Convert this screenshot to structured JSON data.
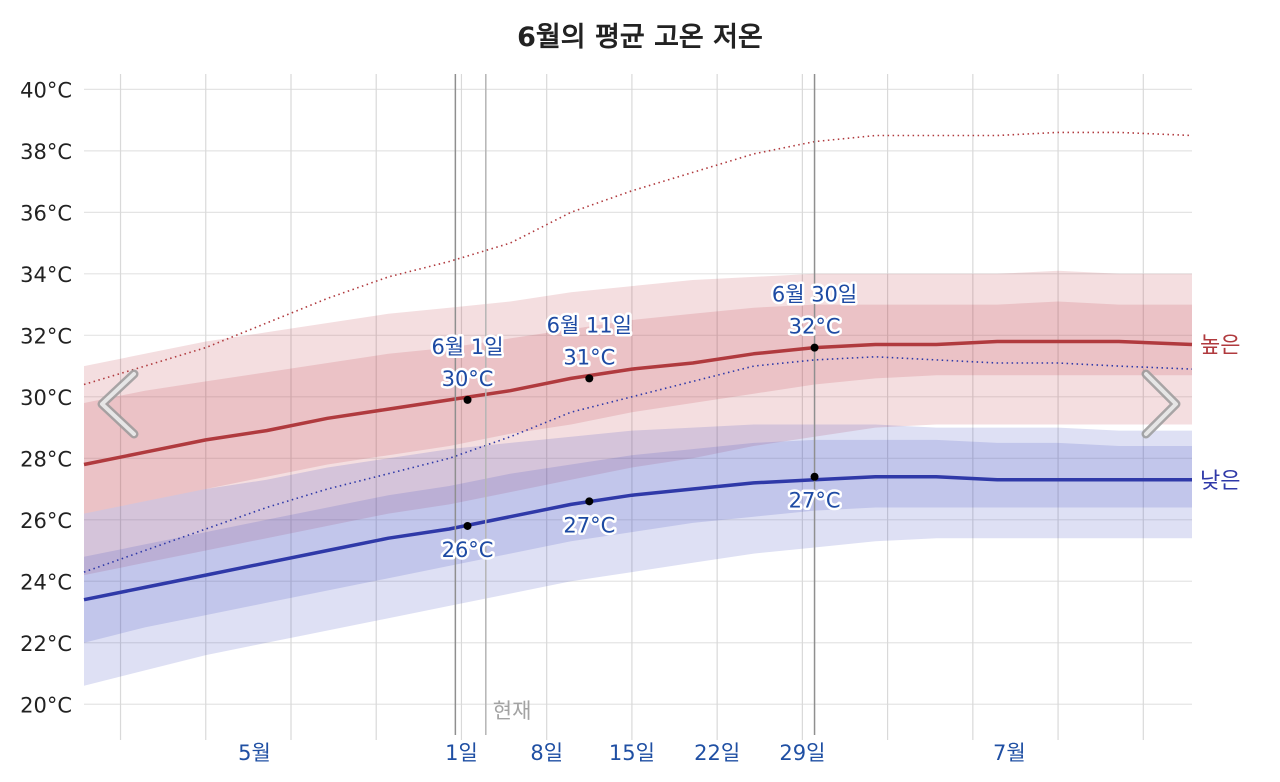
{
  "chart_data": {
    "type": "area",
    "title": "6월의 평균 고온 저온",
    "x_axis": {
      "tick_labels": [
        "5월",
        "1일",
        "8일",
        "15일",
        "22일",
        "29일",
        "7월"
      ],
      "tick_days": [
        -17,
        0,
        7,
        14,
        21,
        28,
        45
      ],
      "gridline_days": [
        -28,
        -21,
        -14,
        -7,
        0,
        7,
        14,
        21,
        28,
        35,
        42,
        49,
        56
      ],
      "range_days": [
        -31,
        60
      ],
      "now_label": "현재",
      "now_day": 2
    },
    "y_axis": {
      "range": [
        19,
        40.5
      ],
      "ticks": [
        20,
        22,
        24,
        26,
        28,
        30,
        32,
        34,
        36,
        38,
        40
      ],
      "tick_labels": [
        "20°C",
        "22°C",
        "24°C",
        "26°C",
        "28°C",
        "30°C",
        "32°C",
        "34°C",
        "36°C",
        "38°C",
        "40°C"
      ]
    },
    "x_days": [
      -31,
      -26,
      -21,
      -16,
      -11,
      -6,
      -1,
      4,
      9,
      14,
      19,
      24,
      29,
      34,
      39,
      44,
      49,
      54,
      60
    ],
    "series": [
      {
        "name": "높은",
        "color": "#b03a3e",
        "mean": [
          27.8,
          28.2,
          28.6,
          28.9,
          29.3,
          29.6,
          29.9,
          30.2,
          30.6,
          30.9,
          31.1,
          31.4,
          31.6,
          31.7,
          31.7,
          31.8,
          31.8,
          31.8,
          31.7
        ],
        "band_inner": [
          [
            26.2,
            29.8
          ],
          [
            26.6,
            30.2
          ],
          [
            27.0,
            30.5
          ],
          [
            27.4,
            30.8
          ],
          [
            27.8,
            31.1
          ],
          [
            28.1,
            31.4
          ],
          [
            28.4,
            31.6
          ],
          [
            28.8,
            31.9
          ],
          [
            29.1,
            32.2
          ],
          [
            29.5,
            32.5
          ],
          [
            29.8,
            32.7
          ],
          [
            30.1,
            32.9
          ],
          [
            30.4,
            33.0
          ],
          [
            30.6,
            33.0
          ],
          [
            30.7,
            33.0
          ],
          [
            30.7,
            33.0
          ],
          [
            30.7,
            33.1
          ],
          [
            30.7,
            33.0
          ],
          [
            30.7,
            33.0
          ]
        ],
        "band_outer": [
          [
            24.2,
            31.0
          ],
          [
            24.6,
            31.4
          ],
          [
            25.0,
            31.8
          ],
          [
            25.4,
            32.1
          ],
          [
            25.8,
            32.4
          ],
          [
            26.2,
            32.7
          ],
          [
            26.5,
            32.9
          ],
          [
            26.9,
            33.1
          ],
          [
            27.3,
            33.4
          ],
          [
            27.7,
            33.6
          ],
          [
            28.0,
            33.8
          ],
          [
            28.4,
            33.9
          ],
          [
            28.7,
            34.0
          ],
          [
            29.0,
            34.0
          ],
          [
            29.1,
            34.0
          ],
          [
            29.1,
            34.0
          ],
          [
            29.1,
            34.1
          ],
          [
            29.1,
            34.0
          ],
          [
            29.1,
            34.0
          ]
        ],
        "record_dotted": [
          30.4,
          31.0,
          31.6,
          32.4,
          33.2,
          33.9,
          34.4,
          35.0,
          36.0,
          36.7,
          37.3,
          37.9,
          38.3,
          38.5,
          38.5,
          38.5,
          38.6,
          38.6,
          38.5
        ]
      },
      {
        "name": "낮은",
        "color": "#2f39a8",
        "mean": [
          23.4,
          23.8,
          24.2,
          24.6,
          25.0,
          25.4,
          25.7,
          26.1,
          26.5,
          26.8,
          27.0,
          27.2,
          27.3,
          27.4,
          27.4,
          27.3,
          27.3,
          27.3,
          27.3
        ],
        "band_inner": [
          [
            22.0,
            24.8
          ],
          [
            22.5,
            25.2
          ],
          [
            22.9,
            25.6
          ],
          [
            23.3,
            26.0
          ],
          [
            23.7,
            26.4
          ],
          [
            24.1,
            26.8
          ],
          [
            24.5,
            27.1
          ],
          [
            24.9,
            27.5
          ],
          [
            25.3,
            27.8
          ],
          [
            25.6,
            28.1
          ],
          [
            25.9,
            28.3
          ],
          [
            26.1,
            28.5
          ],
          [
            26.3,
            28.6
          ],
          [
            26.4,
            28.6
          ],
          [
            26.4,
            28.6
          ],
          [
            26.4,
            28.5
          ],
          [
            26.4,
            28.5
          ],
          [
            26.4,
            28.4
          ],
          [
            26.4,
            28.4
          ]
        ],
        "band_outer": [
          [
            20.6,
            26.2
          ],
          [
            21.1,
            26.6
          ],
          [
            21.6,
            27.0
          ],
          [
            22.0,
            27.3
          ],
          [
            22.4,
            27.7
          ],
          [
            22.8,
            28.0
          ],
          [
            23.2,
            28.3
          ],
          [
            23.6,
            28.5
          ],
          [
            24.0,
            28.7
          ],
          [
            24.3,
            28.9
          ],
          [
            24.6,
            29.0
          ],
          [
            24.9,
            29.1
          ],
          [
            25.1,
            29.1
          ],
          [
            25.3,
            29.1
          ],
          [
            25.4,
            29.0
          ],
          [
            25.4,
            29.0
          ],
          [
            25.4,
            29.0
          ],
          [
            25.4,
            28.9
          ],
          [
            25.4,
            28.9
          ]
        ],
        "record_dotted": [
          24.3,
          25.0,
          25.7,
          26.4,
          27.0,
          27.5,
          28.0,
          28.7,
          29.5,
          30.0,
          30.5,
          31.0,
          31.2,
          31.3,
          31.2,
          31.1,
          31.1,
          31.0,
          30.9
        ]
      }
    ],
    "annotations": [
      {
        "date": "6월 1일",
        "value": "30°C",
        "day": 0.5,
        "y": 29.9,
        "position": "above"
      },
      {
        "date": "6월 11일",
        "value": "31°C",
        "day": 10.5,
        "y": 30.6,
        "position": "above"
      },
      {
        "date": "6월 30일",
        "value": "32°C",
        "day": 29,
        "y": 31.6,
        "position": "above"
      },
      {
        "date": "",
        "value": "26°C",
        "day": 0.5,
        "y": 25.8,
        "position": "below"
      },
      {
        "date": "",
        "value": "27°C",
        "day": 10.5,
        "y": 26.6,
        "position": "below"
      },
      {
        "date": "",
        "value": "27°C",
        "day": 29,
        "y": 27.4,
        "position": "below"
      }
    ],
    "vertical_markers_days": [
      -0.5,
      29
    ],
    "nav": {
      "prev_icon": "chevron-left-icon",
      "next_icon": "chevron-right-icon"
    }
  }
}
